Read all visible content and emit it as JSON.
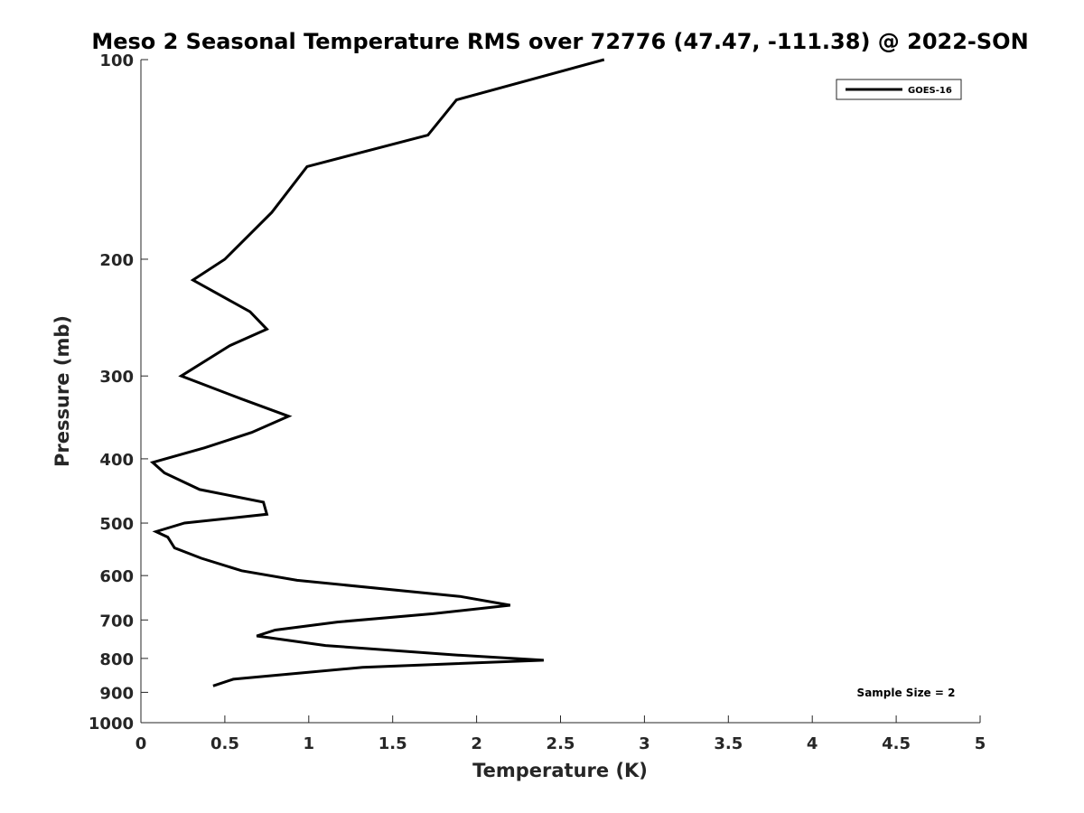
{
  "chart_data": {
    "type": "line",
    "title": "Meso 2 Seasonal Temperature RMS over 72776 (47.47, -111.38) @ 2022-SON",
    "xlabel": "Temperature (K)",
    "ylabel": "Pressure (mb)",
    "xlim": [
      0,
      5
    ],
    "ylim": [
      100,
      1000
    ],
    "y_scale": "log",
    "y_reversed": true,
    "grid": false,
    "x_ticks": [
      0,
      0.5,
      1,
      1.5,
      2,
      2.5,
      3,
      3.5,
      4,
      4.5,
      5
    ],
    "x_tick_labels": [
      "0",
      "0.5",
      "1",
      "1.5",
      "2",
      "2.5",
      "3",
      "3.5",
      "4",
      "4.5",
      "5"
    ],
    "y_ticks": [
      100,
      200,
      300,
      400,
      500,
      600,
      700,
      800,
      900,
      1000
    ],
    "y_tick_labels": [
      "100",
      "200",
      "300",
      "400",
      "500",
      "600",
      "700",
      "800",
      "900",
      "1000"
    ],
    "legend_position": "top-right",
    "series": [
      {
        "name": "GOES-16",
        "color": "#000000",
        "x": [
          2.76,
          1.88,
          1.71,
          0.99,
          0.78,
          0.5,
          0.31,
          0.65,
          0.75,
          0.53,
          0.24,
          0.6,
          0.88,
          0.66,
          0.38,
          0.07,
          0.14,
          0.35,
          0.73,
          0.75,
          0.26,
          0.09,
          0.16,
          0.2,
          0.36,
          0.6,
          0.93,
          1.9,
          2.2,
          1.74,
          1.17,
          0.8,
          0.69,
          1.1,
          1.86,
          2.4,
          1.32,
          0.55,
          0.43
        ],
        "y": [
          100,
          115,
          130,
          145,
          170,
          200,
          215,
          240,
          255,
          270,
          300,
          325,
          345,
          365,
          385,
          405,
          420,
          445,
          465,
          485,
          500,
          515,
          525,
          545,
          565,
          590,
          610,
          645,
          665,
          685,
          705,
          725,
          740,
          765,
          790,
          805,
          825,
          860,
          880
        ]
      }
    ],
    "annotation": "Sample Size = 2"
  }
}
